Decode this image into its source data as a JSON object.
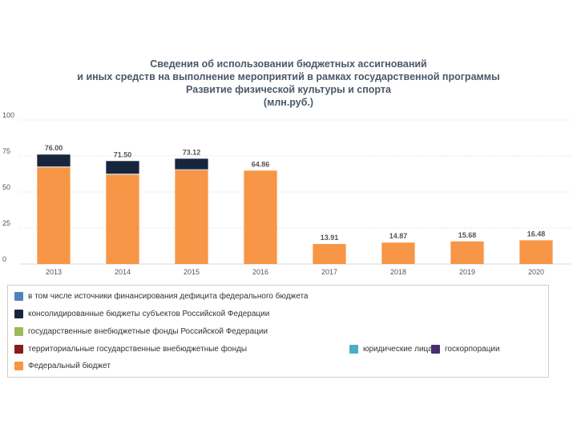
{
  "title_lines": [
    "Сведения об использовании бюджетных ассигнований",
    "и иных средств на выполнение мероприятий в рамках государственной программы",
    "Развитие физической культуры и спорта",
    "(млн.руб.)"
  ],
  "chart_data": {
    "type": "bar",
    "stacked": true,
    "title": "Сведения об использовании бюджетных ассигнований и иных средств на выполнение мероприятий в рамках государственной программы Развитие физической культуры и спорта (млн.руб.)",
    "categories": [
      "2013",
      "2014",
      "2015",
      "2016",
      "2017",
      "2018",
      "2019",
      "2020"
    ],
    "ylim": [
      0,
      100
    ],
    "yticks": [
      0,
      25,
      50,
      75,
      100
    ],
    "grid": true,
    "series": [
      {
        "name": "Федеральный бюджет",
        "color": "#f79646",
        "values": [
          67,
          62,
          65,
          64.86,
          13.91,
          14.87,
          15.68,
          16.48
        ]
      },
      {
        "name": "государственные внебюджетные фонды Российской Федерации",
        "color": "#c9c9c9",
        "values": [
          0.8,
          0.8,
          0.8,
          0,
          0,
          0,
          0,
          0
        ]
      },
      {
        "name": "консолидированные бюджеты субъектов Российской Федерации",
        "color": "#17263c",
        "values": [
          8.2,
          8.7,
          7.32,
          0,
          0,
          0,
          0,
          0
        ]
      }
    ],
    "totals": [
      "76.00",
      "71.50",
      "73.12",
      "64.86",
      "13.91",
      "14.87",
      "15.68",
      "16.48"
    ],
    "legend": [
      {
        "label": "в том числе источники финансирования дефицита федерального бюджета",
        "color": "#4f81bd"
      },
      {
        "label": "консолидированные бюджеты субъектов Российской Федерации",
        "color": "#17263c"
      },
      {
        "label": "государственные внебюджетные фонды Российской Федерации",
        "color": "#9bbb59"
      },
      {
        "label": "территориальные государственные внебюджетные фонды",
        "color": "#8b1a1a"
      },
      {
        "label": "юридические лица",
        "color": "#4bacc6"
      },
      {
        "label": "госкорпорации",
        "color": "#4b2c6f"
      },
      {
        "label": "Федеральный бюджет",
        "color": "#f79646"
      }
    ]
  }
}
